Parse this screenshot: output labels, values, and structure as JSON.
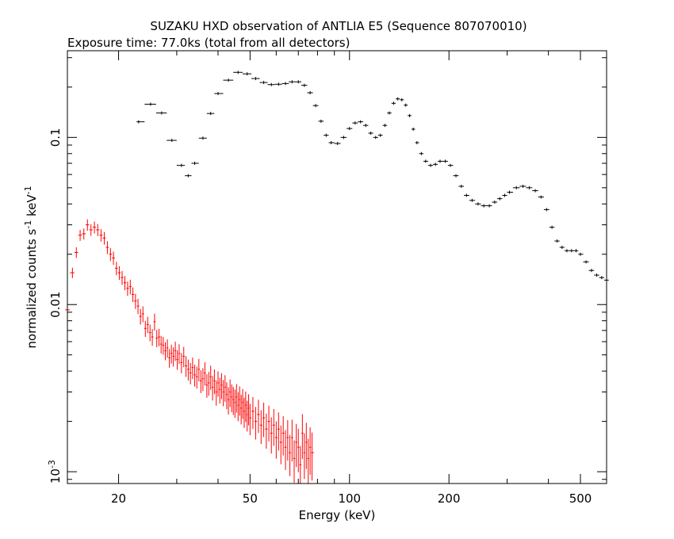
{
  "chart_data": {
    "type": "scatter",
    "title": "SUZAKU HXD observation of ANTLIA E5 (Sequence 807070010)",
    "subtitle": "Exposure time: 77.0ks (total from all detectors)",
    "xlabel": "Energy (keV)",
    "ylabel": "normalized counts s",
    "ylabel_parts": [
      "normalized counts s",
      "-1",
      " keV",
      "-1"
    ],
    "x_scale": "log",
    "y_scale": "log",
    "xlim": [
      14,
      600
    ],
    "ylim": [
      0.00085,
      0.33
    ],
    "x_ticks": [
      {
        "value": 20,
        "label": "20"
      },
      {
        "value": 50,
        "label": "50"
      },
      {
        "value": 100,
        "label": "100"
      },
      {
        "value": 200,
        "label": "200"
      },
      {
        "value": 500,
        "label": "500"
      }
    ],
    "y_ticks": [
      {
        "value": 0.001,
        "label": "10",
        "sup": "-3"
      },
      {
        "value": 0.01,
        "label": "0.01",
        "sup": ""
      },
      {
        "value": 0.1,
        "label": "0.1",
        "sup": ""
      }
    ],
    "grid": false,
    "series": [
      {
        "color": "#000000",
        "points": [
          [
            23,
            0.124
          ],
          [
            25,
            0.158
          ],
          [
            27,
            0.14
          ],
          [
            29,
            0.096
          ],
          [
            31,
            0.068
          ],
          [
            32.5,
            0.059
          ],
          [
            34,
            0.07
          ],
          [
            36,
            0.099
          ],
          [
            38,
            0.139
          ],
          [
            40,
            0.183
          ],
          [
            43,
            0.22
          ],
          [
            46,
            0.245
          ],
          [
            49,
            0.24
          ],
          [
            52,
            0.225
          ],
          [
            55,
            0.213
          ],
          [
            58,
            0.207
          ],
          [
            61,
            0.208
          ],
          [
            64,
            0.21
          ],
          [
            67,
            0.215
          ],
          [
            70,
            0.215
          ],
          [
            73,
            0.205
          ],
          [
            76,
            0.185
          ],
          [
            79,
            0.155
          ],
          [
            82,
            0.125
          ],
          [
            85,
            0.103
          ],
          [
            88,
            0.093
          ],
          [
            92,
            0.092
          ],
          [
            96,
            0.1
          ],
          [
            100,
            0.113
          ],
          [
            104,
            0.122
          ],
          [
            108,
            0.124
          ],
          [
            112,
            0.118
          ],
          [
            116,
            0.106
          ],
          [
            120,
            0.1
          ],
          [
            124,
            0.103
          ],
          [
            128,
            0.118
          ],
          [
            132,
            0.14
          ],
          [
            136,
            0.16
          ],
          [
            140,
            0.17
          ],
          [
            144,
            0.168
          ],
          [
            148,
            0.156
          ],
          [
            152,
            0.135
          ],
          [
            156,
            0.112
          ],
          [
            160,
            0.093
          ],
          [
            165,
            0.08
          ],
          [
            170,
            0.072
          ],
          [
            176,
            0.068
          ],
          [
            182,
            0.069
          ],
          [
            188,
            0.072
          ],
          [
            195,
            0.072
          ],
          [
            202,
            0.068
          ],
          [
            210,
            0.059
          ],
          [
            218,
            0.051
          ],
          [
            226,
            0.045
          ],
          [
            235,
            0.042
          ],
          [
            245,
            0.04
          ],
          [
            255,
            0.039
          ],
          [
            265,
            0.039
          ],
          [
            275,
            0.041
          ],
          [
            285,
            0.043
          ],
          [
            295,
            0.045
          ],
          [
            305,
            0.047
          ],
          [
            320,
            0.05
          ],
          [
            335,
            0.051
          ],
          [
            350,
            0.05
          ],
          [
            365,
            0.048
          ],
          [
            380,
            0.044
          ],
          [
            395,
            0.037
          ],
          [
            410,
            0.029
          ],
          [
            425,
            0.024
          ],
          [
            440,
            0.022
          ],
          [
            455,
            0.021
          ],
          [
            470,
            0.021
          ],
          [
            485,
            0.021
          ],
          [
            500,
            0.02
          ],
          [
            520,
            0.018
          ],
          [
            540,
            0.016
          ],
          [
            560,
            0.015
          ],
          [
            580,
            0.0145
          ],
          [
            600,
            0.014
          ]
        ]
      },
      {
        "color": "#ff0000",
        "points": [
          [
            14,
            0.0093
          ],
          [
            14.5,
            0.0155
          ],
          [
            14.9,
            0.0205
          ],
          [
            15.3,
            0.026
          ],
          [
            15.7,
            0.0265
          ],
          [
            16.1,
            0.03
          ],
          [
            16.5,
            0.028
          ],
          [
            16.9,
            0.029
          ],
          [
            17.3,
            0.028
          ],
          [
            17.7,
            0.026
          ],
          [
            18.1,
            0.025
          ],
          [
            18.5,
            0.022
          ],
          [
            18.9,
            0.02
          ],
          [
            19.3,
            0.019
          ],
          [
            19.7,
            0.0165
          ],
          [
            20.1,
            0.0155
          ],
          [
            20.5,
            0.0145
          ],
          [
            20.9,
            0.0135
          ],
          [
            21.3,
            0.0125
          ],
          [
            21.7,
            0.0128
          ],
          [
            22.1,
            0.0115
          ],
          [
            22.5,
            0.0105
          ],
          [
            22.9,
            0.0098
          ],
          [
            23.3,
            0.0085
          ],
          [
            23.7,
            0.0088
          ],
          [
            24.1,
            0.0072
          ],
          [
            24.5,
            0.0076
          ],
          [
            24.9,
            0.0068
          ],
          [
            25.3,
            0.0064
          ],
          [
            25.7,
            0.0079
          ],
          [
            26.1,
            0.0063
          ],
          [
            26.5,
            0.0064
          ],
          [
            26.9,
            0.0058
          ],
          [
            27.3,
            0.0057
          ],
          [
            27.7,
            0.0053
          ],
          [
            28.1,
            0.0055
          ],
          [
            28.5,
            0.0048
          ],
          [
            28.9,
            0.0051
          ],
          [
            29.3,
            0.0049
          ],
          [
            29.7,
            0.0053
          ],
          [
            30.1,
            0.0047
          ],
          [
            30.5,
            0.0051
          ],
          [
            31,
            0.0045
          ],
          [
            31.5,
            0.0049
          ],
          [
            32,
            0.0043
          ],
          [
            32.5,
            0.0041
          ],
          [
            33,
            0.0039
          ],
          [
            33.5,
            0.0042
          ],
          [
            34,
            0.0038
          ],
          [
            34.5,
            0.0037
          ],
          [
            35,
            0.0041
          ],
          [
            35.5,
            0.0035
          ],
          [
            36,
            0.0036
          ],
          [
            36.5,
            0.0039
          ],
          [
            37,
            0.0033
          ],
          [
            37.5,
            0.0034
          ],
          [
            38,
            0.0037
          ],
          [
            38.5,
            0.0032
          ],
          [
            39,
            0.0035
          ],
          [
            39.5,
            0.003
          ],
          [
            40,
            0.0034
          ],
          [
            40.5,
            0.0031
          ],
          [
            41,
            0.0033
          ],
          [
            41.5,
            0.003
          ],
          [
            42,
            0.0032
          ],
          [
            42.5,
            0.0029
          ],
          [
            43,
            0.0027
          ],
          [
            43.5,
            0.003
          ],
          [
            44,
            0.0028
          ],
          [
            44.5,
            0.0027
          ],
          [
            45,
            0.0026
          ],
          [
            45.5,
            0.0028
          ],
          [
            46,
            0.0025
          ],
          [
            46.5,
            0.0027
          ],
          [
            47,
            0.0024
          ],
          [
            47.5,
            0.0026
          ],
          [
            48,
            0.0023
          ],
          [
            48.5,
            0.0025
          ],
          [
            49,
            0.0022
          ],
          [
            49.5,
            0.0024
          ],
          [
            50,
            0.0021
          ],
          [
            51,
            0.0023
          ],
          [
            52,
            0.002
          ],
          [
            53,
            0.0022
          ],
          [
            54,
            0.0019
          ],
          [
            55,
            0.0021
          ],
          [
            56,
            0.0018
          ],
          [
            57,
            0.002
          ],
          [
            58,
            0.0017
          ],
          [
            59,
            0.0019
          ],
          [
            60,
            0.0016
          ],
          [
            61,
            0.0018
          ],
          [
            62,
            0.0015
          ],
          [
            63,
            0.0017
          ],
          [
            64,
            0.0014
          ],
          [
            65,
            0.0016
          ],
          [
            66,
            0.0013
          ],
          [
            67,
            0.0016
          ],
          [
            68,
            0.0012
          ],
          [
            69,
            0.0015
          ],
          [
            70,
            0.0014
          ],
          [
            71,
            0.0011
          ],
          [
            72,
            0.0017
          ],
          [
            73,
            0.0013
          ],
          [
            74,
            0.0015
          ],
          [
            75,
            0.0012
          ],
          [
            76,
            0.0014
          ],
          [
            77,
            0.0013
          ]
        ]
      }
    ]
  }
}
